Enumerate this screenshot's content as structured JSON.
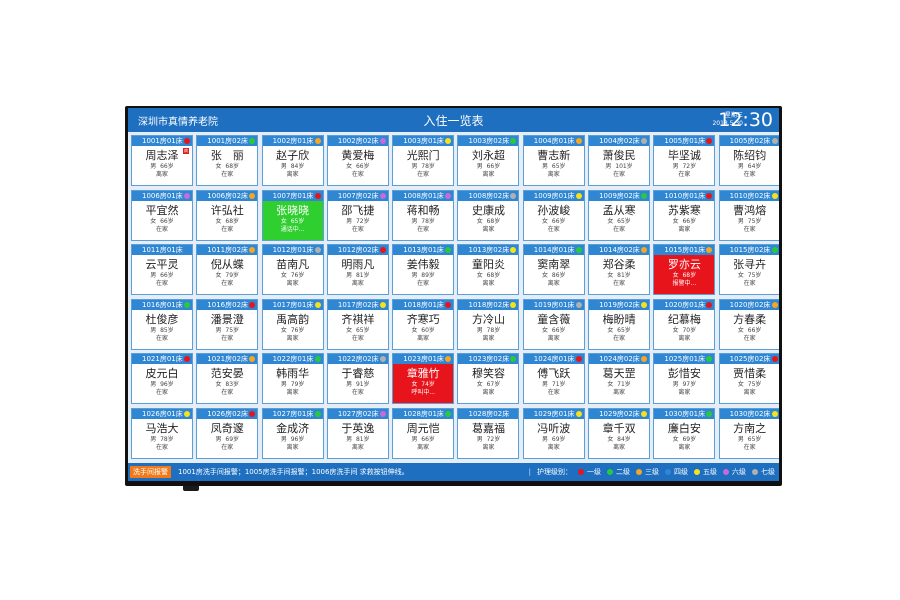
{
  "header": {
    "org": "深圳市真情养老院",
    "title": "入住一览表",
    "weekday": "星期三",
    "date": "2018.5.30",
    "time": "12:30"
  },
  "level_colors": {
    "一级": "#e8141c",
    "二级": "#27c93f",
    "三级": "#f5a623",
    "四级": "#2f86d2",
    "五级": "#f5e11c",
    "六级": "#c86bd8",
    "七级": "#b0b0b0"
  },
  "residents": [
    {
      "room": "1001房01床",
      "name": "周志泽",
      "gender": "男",
      "age": "66岁",
      "status": "离家",
      "level": "一级",
      "badge": "病"
    },
    {
      "room": "1001房02床",
      "name": "张　丽",
      "gender": "女",
      "age": "68岁",
      "status": "在家",
      "level": "二级"
    },
    {
      "room": "1002房01床",
      "name": "赵子欣",
      "gender": "男",
      "age": "84岁",
      "status": "离家",
      "level": "三级"
    },
    {
      "room": "1002房02床",
      "name": "黄爱梅",
      "gender": "女",
      "age": "66岁",
      "status": "在家",
      "level": "六级"
    },
    {
      "room": "1003房01床",
      "name": "光熙门",
      "gender": "男",
      "age": "78岁",
      "status": "在家",
      "level": "五级"
    },
    {
      "room": "1003房02床",
      "name": "刘永超",
      "gender": "男",
      "age": "66岁",
      "status": "离家",
      "level": "二级"
    },
    {
      "room": "1004房01床",
      "name": "曹志新",
      "gender": "男",
      "age": "65岁",
      "status": "离家",
      "level": "三级"
    },
    {
      "room": "1004房02床",
      "name": "萧俊民",
      "gender": "男",
      "age": "101岁",
      "status": "在家",
      "level": "七级"
    },
    {
      "room": "1005房01床",
      "name": "毕坚诚",
      "gender": "男",
      "age": "72岁",
      "status": "在家",
      "level": "一级"
    },
    {
      "room": "1005房02床",
      "name": "陈绍钧",
      "gender": "男",
      "age": "64岁",
      "status": "在家",
      "level": "七级"
    },
    {
      "room": "1006房01床",
      "name": "平宜然",
      "gender": "女",
      "age": "66岁",
      "status": "在家",
      "level": "六级"
    },
    {
      "room": "1006房02床",
      "name": "许弘社",
      "gender": "女",
      "age": "68岁",
      "status": "在家",
      "level": "三级"
    },
    {
      "room": "1007房01床",
      "name": "张晓晓",
      "gender": "女",
      "age": "65岁",
      "status": "通话中...",
      "level": "一级",
      "alert": "green"
    },
    {
      "room": "1007房02床",
      "name": "邵飞捷",
      "gender": "男",
      "age": "72岁",
      "status": "在家",
      "level": "六级"
    },
    {
      "room": "1008房01床",
      "name": "蒋和畅",
      "gender": "男",
      "age": "78岁",
      "status": "在家",
      "level": "六级"
    },
    {
      "room": "1008房02床",
      "name": "史康成",
      "gender": "女",
      "age": "68岁",
      "status": "离家",
      "level": "七级"
    },
    {
      "room": "1009房01床",
      "name": "孙波峻",
      "gender": "女",
      "age": "66岁",
      "status": "在家",
      "level": "五级"
    },
    {
      "room": "1009房02床",
      "name": "孟从寒",
      "gender": "女",
      "age": "65岁",
      "status": "在家",
      "level": "二级"
    },
    {
      "room": "1010房01床",
      "name": "苏紫寒",
      "gender": "女",
      "age": "66岁",
      "status": "离家",
      "level": "一级"
    },
    {
      "room": "1010房02床",
      "name": "曹鸿熔",
      "gender": "男",
      "age": "75岁",
      "status": "在家",
      "level": "五级"
    },
    {
      "room": "1011房01床",
      "name": "云平灵",
      "gender": "男",
      "age": "66岁",
      "status": "在家",
      "level": "四级"
    },
    {
      "room": "1011房02床",
      "name": "倪从蝶",
      "gender": "女",
      "age": "79岁",
      "status": "在家",
      "level": "三级"
    },
    {
      "room": "1012房01床",
      "name": "苗南凡",
      "gender": "女",
      "age": "76岁",
      "status": "离家",
      "level": "七级"
    },
    {
      "room": "1012房02床",
      "name": "明雨凡",
      "gender": "男",
      "age": "81岁",
      "status": "离家",
      "level": "一级"
    },
    {
      "room": "1013房01床",
      "name": "姜伟毅",
      "gender": "男",
      "age": "89岁",
      "status": "在家",
      "level": "二级"
    },
    {
      "room": "1013房02床",
      "name": "童阳炎",
      "gender": "女",
      "age": "68岁",
      "status": "离家",
      "level": "五级"
    },
    {
      "room": "1014房01床",
      "name": "窦南翠",
      "gender": "女",
      "age": "86岁",
      "status": "离家",
      "level": "二级"
    },
    {
      "room": "1014房02床",
      "name": "郑谷柔",
      "gender": "女",
      "age": "81岁",
      "status": "在家",
      "level": "三级"
    },
    {
      "room": "1015房01床",
      "name": "罗亦云",
      "gender": "女",
      "age": "68岁",
      "status": "报警中...",
      "level": "三级",
      "alert": "red"
    },
    {
      "room": "1015房02床",
      "name": "张寻卉",
      "gender": "女",
      "age": "75岁",
      "status": "在家",
      "level": "二级"
    },
    {
      "room": "1016房01床",
      "name": "杜俊彦",
      "gender": "男",
      "age": "85岁",
      "status": "在家",
      "level": "二级"
    },
    {
      "room": "1016房02床",
      "name": "潘景澄",
      "gender": "男",
      "age": "75岁",
      "status": "在家",
      "level": "一级"
    },
    {
      "room": "1017房01床",
      "name": "禹高韵",
      "gender": "女",
      "age": "76岁",
      "status": "离家",
      "level": "五级"
    },
    {
      "room": "1017房02床",
      "name": "齐祺祥",
      "gender": "女",
      "age": "65岁",
      "status": "在家",
      "level": "五级"
    },
    {
      "room": "1018房01床",
      "name": "齐寒巧",
      "gender": "女",
      "age": "60岁",
      "status": "离家",
      "level": "一级"
    },
    {
      "room": "1018房02床",
      "name": "方冷山",
      "gender": "男",
      "age": "78岁",
      "status": "离家",
      "level": "五级"
    },
    {
      "room": "1019房01床",
      "name": "童含薇",
      "gender": "女",
      "age": "66岁",
      "status": "离家",
      "level": "七级"
    },
    {
      "room": "1019房02床",
      "name": "梅盼晴",
      "gender": "女",
      "age": "65岁",
      "status": "在家",
      "level": "五级"
    },
    {
      "room": "1020房01床",
      "name": "纪慕梅",
      "gender": "女",
      "age": "70岁",
      "status": "离家",
      "level": "一级"
    },
    {
      "room": "1020房02床",
      "name": "方春柔",
      "gender": "女",
      "age": "66岁",
      "status": "在家",
      "level": "三级"
    },
    {
      "room": "1021房01床",
      "name": "皮元白",
      "gender": "男",
      "age": "96岁",
      "status": "在家",
      "level": "一级"
    },
    {
      "room": "1021房02床",
      "name": "范安晏",
      "gender": "女",
      "age": "83岁",
      "status": "在家",
      "level": "三级"
    },
    {
      "room": "1022房01床",
      "name": "韩雨华",
      "gender": "男",
      "age": "79岁",
      "status": "离家",
      "level": "二级"
    },
    {
      "room": "1022房02床",
      "name": "于睿慈",
      "gender": "男",
      "age": "91岁",
      "status": "在家",
      "level": "七级"
    },
    {
      "room": "1023房01床",
      "name": "章雅竹",
      "gender": "女",
      "age": "74岁",
      "status": "呼叫中...",
      "level": "三级",
      "alert": "red"
    },
    {
      "room": "1023房02床",
      "name": "穆笑容",
      "gender": "女",
      "age": "67岁",
      "status": "离家",
      "level": "二级"
    },
    {
      "room": "1024房01床",
      "name": "傅飞跃",
      "gender": "男",
      "age": "71岁",
      "status": "在家",
      "level": "一级"
    },
    {
      "room": "1024房02床",
      "name": "葛天罡",
      "gender": "女",
      "age": "71岁",
      "status": "离家",
      "level": "三级"
    },
    {
      "room": "1025房01床",
      "name": "彭惜安",
      "gender": "男",
      "age": "97岁",
      "status": "离家",
      "level": "二级"
    },
    {
      "room": "1025房02床",
      "name": "贾惜柔",
      "gender": "女",
      "age": "75岁",
      "status": "离家",
      "level": "一级"
    },
    {
      "room": "1026房01床",
      "name": "马浩大",
      "gender": "男",
      "age": "78岁",
      "status": "在家",
      "level": "五级"
    },
    {
      "room": "1026房02床",
      "name": "凤奇邃",
      "gender": "男",
      "age": "69岁",
      "status": "在家",
      "level": "一级"
    },
    {
      "room": "1027房01床",
      "name": "金成济",
      "gender": "男",
      "age": "96岁",
      "status": "离家",
      "level": "二级"
    },
    {
      "room": "1027房02床",
      "name": "于英逸",
      "gender": "男",
      "age": "81岁",
      "status": "离家",
      "level": "六级"
    },
    {
      "room": "1028房01床",
      "name": "周元恺",
      "gender": "男",
      "age": "66岁",
      "status": "离家",
      "level": "二级"
    },
    {
      "room": "1028房02床",
      "name": "葛嘉福",
      "gender": "男",
      "age": "72岁",
      "status": "离家",
      "level": "四级"
    },
    {
      "room": "1029房01床",
      "name": "冯听波",
      "gender": "男",
      "age": "69岁",
      "status": "离家",
      "level": "五级"
    },
    {
      "room": "1029房02床",
      "name": "章千双",
      "gender": "女",
      "age": "84岁",
      "status": "离家",
      "level": "五级"
    },
    {
      "room": "1030房01床",
      "name": "廉白安",
      "gender": "女",
      "age": "69岁",
      "status": "离家",
      "level": "二级"
    },
    {
      "room": "1030房02床",
      "name": "方南之",
      "gender": "男",
      "age": "65岁",
      "status": "在家",
      "level": "五级"
    }
  ],
  "footer": {
    "alarm_tag": "洗手间报警",
    "message": "1001房洗手间报警；1005房洗手间报警；1006房洗手间  求救按钮伸线。",
    "legend_title": "护理级别：",
    "legend": [
      "一级",
      "二级",
      "三级",
      "四级",
      "五级",
      "六级",
      "七级"
    ]
  }
}
